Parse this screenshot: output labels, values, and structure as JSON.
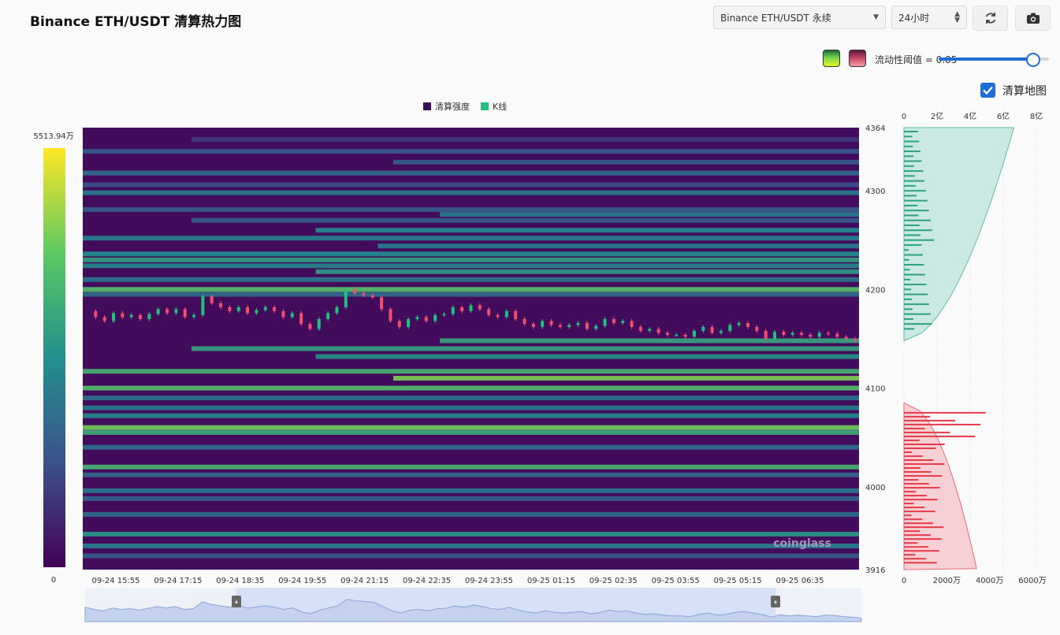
{
  "header": {
    "title": "Binance ETH/USDT 清算热力图",
    "exchange_select": "Binance ETH/USDT 永续",
    "range_select": "24小时",
    "refresh_icon": "refresh-icon",
    "camera_icon": "camera-icon"
  },
  "controls": {
    "threshold_label": "流动性阈值 = 0.85",
    "threshold_value": 0.85,
    "liq_map_label": "清算地图",
    "liq_map_checked": true,
    "palette_green": [
      "#1d6b3a",
      "#7fdc4a",
      "#e8f020"
    ],
    "palette_red": [
      "#5a1a3a",
      "#c8466a",
      "#f2a0a0"
    ]
  },
  "chart_data": {
    "type": "heatmap",
    "legend": [
      "清算强度",
      "K线"
    ],
    "legend_colors": [
      "#3b0f57",
      "#22c07e"
    ],
    "colorbar": {
      "max_label": "5513.94万",
      "min_label": "0",
      "max": 5513.94,
      "min": 0,
      "unit": "万"
    },
    "y_ticks": [
      4364,
      4300,
      4200,
      4100,
      4000,
      3916
    ],
    "ylim": [
      3916,
      4364
    ],
    "x_ticks": [
      "09-24 15:55",
      "09-24 17:15",
      "09-24 18:35",
      "09-24 19:55",
      "09-24 21:15",
      "09-24 22:35",
      "09-24 23:55",
      "09-25 01:15",
      "09-25 02:35",
      "09-25 03:55",
      "09-25 05:15",
      "09-25 06:35"
    ],
    "bands": [
      {
        "price": 4352,
        "start": 0.14,
        "intensity": 0.18
      },
      {
        "price": 4340,
        "start": 0.0,
        "intensity": 0.28
      },
      {
        "price": 4329,
        "start": 0.4,
        "intensity": 0.3
      },
      {
        "price": 4318,
        "start": 0.0,
        "intensity": 0.35
      },
      {
        "price": 4306,
        "start": 0.0,
        "intensity": 0.25
      },
      {
        "price": 4298,
        "start": 0.0,
        "intensity": 0.42
      },
      {
        "price": 4281,
        "start": 0.0,
        "intensity": 0.3
      },
      {
        "price": 4276,
        "start": 0.46,
        "intensity": 0.42
      },
      {
        "price": 4270,
        "start": 0.14,
        "intensity": 0.3
      },
      {
        "price": 4260,
        "start": 0.3,
        "intensity": 0.48
      },
      {
        "price": 4252,
        "start": 0.0,
        "intensity": 0.44
      },
      {
        "price": 4244,
        "start": 0.38,
        "intensity": 0.44
      },
      {
        "price": 4236,
        "start": 0.0,
        "intensity": 0.5
      },
      {
        "price": 4230,
        "start": 0.0,
        "intensity": 0.58
      },
      {
        "price": 4224,
        "start": 0.0,
        "intensity": 0.46
      },
      {
        "price": 4218,
        "start": 0.3,
        "intensity": 0.55
      },
      {
        "price": 4210,
        "start": 0.0,
        "intensity": 0.4
      },
      {
        "price": 4200,
        "start": 0.0,
        "intensity": 0.72
      },
      {
        "price": 4195,
        "start": 0.0,
        "intensity": 0.36
      },
      {
        "price": 4148,
        "start": 0.46,
        "intensity": 0.6
      },
      {
        "price": 4140,
        "start": 0.14,
        "intensity": 0.58
      },
      {
        "price": 4132,
        "start": 0.3,
        "intensity": 0.52
      },
      {
        "price": 4117,
        "start": 0.0,
        "intensity": 0.66
      },
      {
        "price": 4110,
        "start": 0.4,
        "intensity": 0.8
      },
      {
        "price": 4100,
        "start": 0.0,
        "intensity": 0.7
      },
      {
        "price": 4090,
        "start": 0.0,
        "intensity": 0.38
      },
      {
        "price": 4080,
        "start": 0.0,
        "intensity": 0.42
      },
      {
        "price": 4072,
        "start": 0.0,
        "intensity": 0.48
      },
      {
        "price": 4060,
        "start": 0.0,
        "intensity": 0.78
      },
      {
        "price": 4055,
        "start": 0.0,
        "intensity": 0.62
      },
      {
        "price": 4040,
        "start": 0.0,
        "intensity": 0.38
      },
      {
        "price": 4020,
        "start": 0.0,
        "intensity": 0.66
      },
      {
        "price": 4012,
        "start": 0.0,
        "intensity": 0.34
      },
      {
        "price": 3996,
        "start": 0.0,
        "intensity": 0.4
      },
      {
        "price": 3988,
        "start": 0.0,
        "intensity": 0.32
      },
      {
        "price": 3972,
        "start": 0.0,
        "intensity": 0.36
      },
      {
        "price": 3952,
        "start": 0.0,
        "intensity": 0.54
      },
      {
        "price": 3940,
        "start": 0.0,
        "intensity": 0.44
      },
      {
        "price": 3930,
        "start": 0.0,
        "intensity": 0.3
      }
    ],
    "price_path": [
      4178,
      4172,
      4168,
      4176,
      4172,
      4174,
      4170,
      4175,
      4180,
      4176,
      4180,
      4172,
      4174,
      4193,
      4186,
      4182,
      4178,
      4182,
      4176,
      4179,
      4182,
      4178,
      4172,
      4176,
      4165,
      4160,
      4170,
      4176,
      4182,
      4200,
      4196,
      4194,
      4192,
      4180,
      4168,
      4162,
      4170,
      4172,
      4168,
      4174,
      4175,
      4182,
      4178,
      4184,
      4180,
      4174,
      4172,
      4178,
      4170,
      4165,
      4162,
      4168,
      4164,
      4162,
      4164,
      4166,
      4160,
      4163,
      4170,
      4166,
      4168,
      4162,
      4158,
      4160,
      4156,
      4154,
      4154,
      4152,
      4158,
      4162,
      4156,
      4158,
      4164,
      4166,
      4162,
      4158,
      4150,
      4157,
      4154,
      4156,
      4154,
      4152,
      4156,
      4155,
      4152,
      4150,
      4148
    ],
    "cumulative_axis": {
      "ticks": [
        "0",
        "2亿",
        "4亿",
        "6亿",
        "8亿"
      ],
      "max": 8
    },
    "liquidation_axis": {
      "ticks": [
        "0",
        "2000万",
        "4000万",
        "6000万"
      ],
      "max": 6000
    }
  },
  "watermark": "coinglass"
}
